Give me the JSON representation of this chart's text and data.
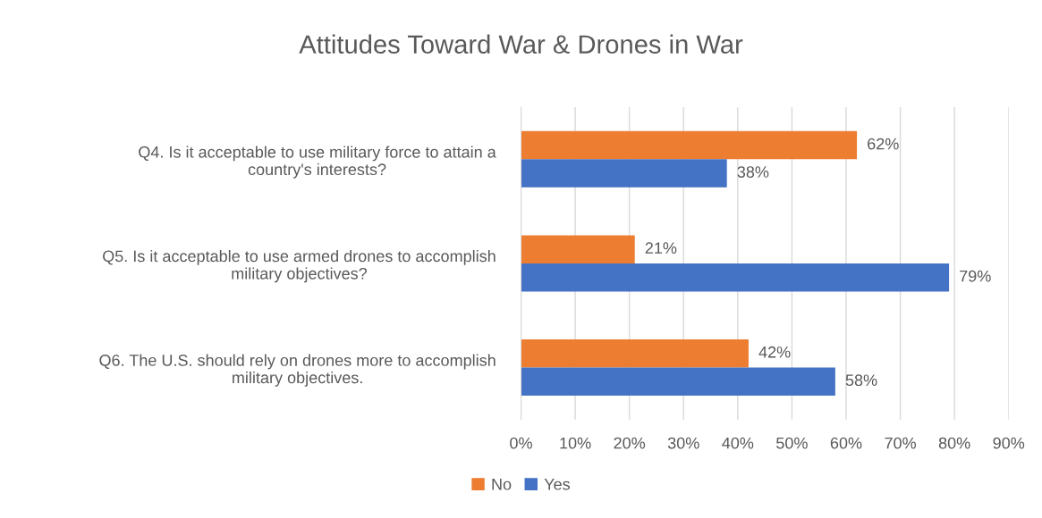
{
  "chart_data": {
    "type": "bar",
    "orientation": "horizontal",
    "title": "Attitudes Toward War & Drones in War",
    "categories": [
      "Q4. Is it acceptable to use military force to attain a\ncountry's interests?",
      "Q5. Is it acceptable to use armed drones to accomplish\nmilitary objectives?",
      "Q6. The U.S. should rely on drones more to accomplish\nmilitary objectives."
    ],
    "series": [
      {
        "name": "No",
        "color": "#ed7d31",
        "values": [
          62,
          21,
          42
        ],
        "value_labels": [
          "62%",
          "21%",
          "42%"
        ]
      },
      {
        "name": "Yes",
        "color": "#4472c4",
        "values": [
          38,
          79,
          58
        ],
        "value_labels": [
          "38%",
          "79%",
          "58%"
        ]
      }
    ],
    "xlim": [
      0,
      90
    ],
    "xticks": [
      {
        "value": 0,
        "label": "0%"
      },
      {
        "value": 10,
        "label": "10%"
      },
      {
        "value": 20,
        "label": "20%"
      },
      {
        "value": 30,
        "label": "30%"
      },
      {
        "value": 40,
        "label": "40%"
      },
      {
        "value": 50,
        "label": "50%"
      },
      {
        "value": 60,
        "label": "60%"
      },
      {
        "value": 70,
        "label": "70%"
      },
      {
        "value": 80,
        "label": "80%"
      },
      {
        "value": 90,
        "label": "90%"
      }
    ],
    "grid": "x",
    "legend": "bottom"
  }
}
